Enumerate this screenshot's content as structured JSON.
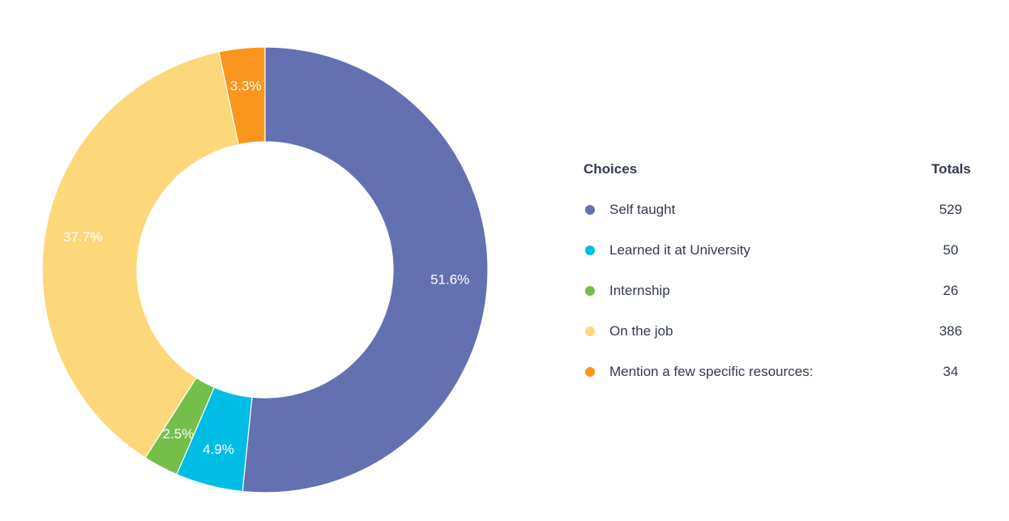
{
  "chart_data": {
    "type": "pie",
    "donut": true,
    "categories": [
      "Self taught",
      "Learned it at University",
      "Internship",
      "On the job",
      "Mention a few specific resources:"
    ],
    "values": [
      529,
      50,
      26,
      386,
      34
    ],
    "percent_labels": [
      "51.6%",
      "4.9%",
      "2.5%",
      "37.7%",
      "3.3%"
    ],
    "colors": [
      "#6371b1",
      "#00bde6",
      "#74bf4a",
      "#fdd87a",
      "#fa961e"
    ],
    "legend_placement": "right"
  },
  "legend": {
    "header_choices": "Choices",
    "header_totals": "Totals",
    "items": [
      {
        "label": "Self taught",
        "total": "529",
        "color": "#6371b1"
      },
      {
        "label": "Learned it at University",
        "total": "50",
        "color": "#00bde6"
      },
      {
        "label": "Internship",
        "total": "26",
        "color": "#74bf4a"
      },
      {
        "label": "On the job",
        "total": "386",
        "color": "#fdd87a"
      },
      {
        "label": "Mention a few specific resources:",
        "total": "34",
        "color": "#fa961e"
      }
    ]
  }
}
